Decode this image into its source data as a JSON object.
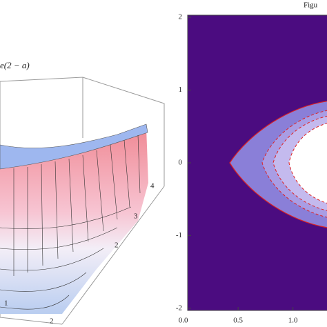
{
  "chart_data": [
    {
      "type": "surface3d",
      "label": "e(2 − a)",
      "side_ticks": [
        4,
        3,
        2
      ],
      "base_ticks": [
        1,
        2
      ]
    },
    {
      "type": "contour",
      "title": "Figu",
      "xlim": [
        0.04,
        1.4
      ],
      "ylim": [
        -2.03,
        2.03
      ],
      "xticks": [
        {
          "value": 0,
          "label": "0.0"
        },
        {
          "value": 0.5,
          "label": "0.5"
        },
        {
          "value": 1,
          "label": "1.0"
        }
      ],
      "yticks": [
        -2,
        -1,
        0,
        1,
        2
      ],
      "background": "#4b0c80"
    }
  ]
}
